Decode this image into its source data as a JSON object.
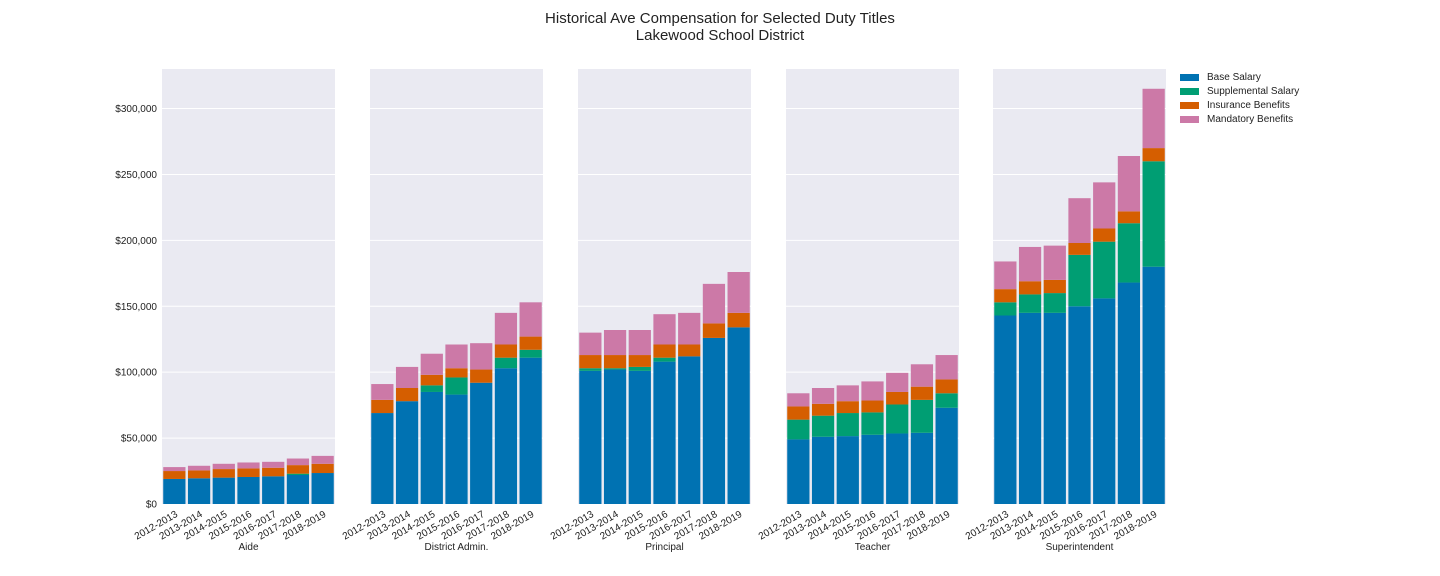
{
  "title": "Historical Ave Compensation for Selected Duty Titles",
  "subtitle": "Lakewood School District",
  "chart_data": {
    "type": "bar",
    "stacked": true,
    "ylim": [
      0,
      330000
    ],
    "yticks": [
      0,
      50000,
      100000,
      150000,
      200000,
      250000,
      300000
    ],
    "ytick_labels": [
      "$0",
      "$50,000",
      "$100,000",
      "$150,000",
      "$200,000",
      "$250,000",
      "$300,000"
    ],
    "grid": true,
    "legend_position": "right",
    "categories": [
      "2012-2013",
      "2013-2014",
      "2014-2015",
      "2015-2016",
      "2016-2017",
      "2017-2018",
      "2018-2019"
    ],
    "series_meta": [
      {
        "name": "Base Salary",
        "color": "#0072b2"
      },
      {
        "name": "Supplemental Salary",
        "color": "#009e73"
      },
      {
        "name": "Insurance Benefits",
        "color": "#d55e00"
      },
      {
        "name": "Mandatory Benefits",
        "color": "#cc79a7"
      }
    ],
    "panels": [
      {
        "xlabel": "Aide",
        "series": [
          [
            19000,
            19500,
            20000,
            20500,
            21000,
            22000,
            23500
          ],
          [
            0,
            0,
            0,
            0,
            0,
            1000,
            0
          ],
          [
            6000,
            6000,
            6500,
            6500,
            6500,
            6500,
            7000
          ],
          [
            3000,
            3500,
            4000,
            4500,
            4500,
            5000,
            6000
          ]
        ]
      },
      {
        "xlabel": "District Admin.",
        "series": [
          [
            69000,
            78000,
            85000,
            83000,
            92000,
            103000,
            111000
          ],
          [
            0,
            0,
            5000,
            13000,
            0,
            8000,
            6000
          ],
          [
            10000,
            10000,
            8000,
            7000,
            10000,
            10000,
            10000
          ],
          [
            12000,
            16000,
            16000,
            18000,
            20000,
            24000,
            26000
          ]
        ]
      },
      {
        "xlabel": "Principal",
        "series": [
          [
            101000,
            102000,
            101000,
            108000,
            112000,
            126000,
            134000
          ],
          [
            2000,
            1000,
            3000,
            3000,
            0,
            0,
            0
          ],
          [
            10000,
            10000,
            9000,
            10000,
            9000,
            11000,
            11000
          ],
          [
            17000,
            19000,
            19000,
            23000,
            24000,
            30000,
            31000
          ]
        ]
      },
      {
        "xlabel": "Teacher",
        "series": [
          [
            49000,
            51000,
            51500,
            52500,
            53500,
            54000,
            73000
          ],
          [
            15000,
            16000,
            17500,
            17000,
            22000,
            25000,
            11000
          ],
          [
            10000,
            9000,
            9000,
            9000,
            9500,
            10000,
            10500
          ],
          [
            10000,
            12000,
            12000,
            14500,
            14500,
            17000,
            18500
          ]
        ]
      },
      {
        "xlabel": "Superintendent",
        "series": [
          [
            143000,
            145000,
            145000,
            150000,
            156000,
            168000,
            180000
          ],
          [
            10000,
            14000,
            15000,
            39000,
            43000,
            45000,
            80000
          ],
          [
            10000,
            10000,
            10000,
            9000,
            10000,
            9000,
            10000
          ],
          [
            21000,
            26000,
            26000,
            34000,
            35000,
            42000,
            45000
          ]
        ]
      }
    ]
  }
}
